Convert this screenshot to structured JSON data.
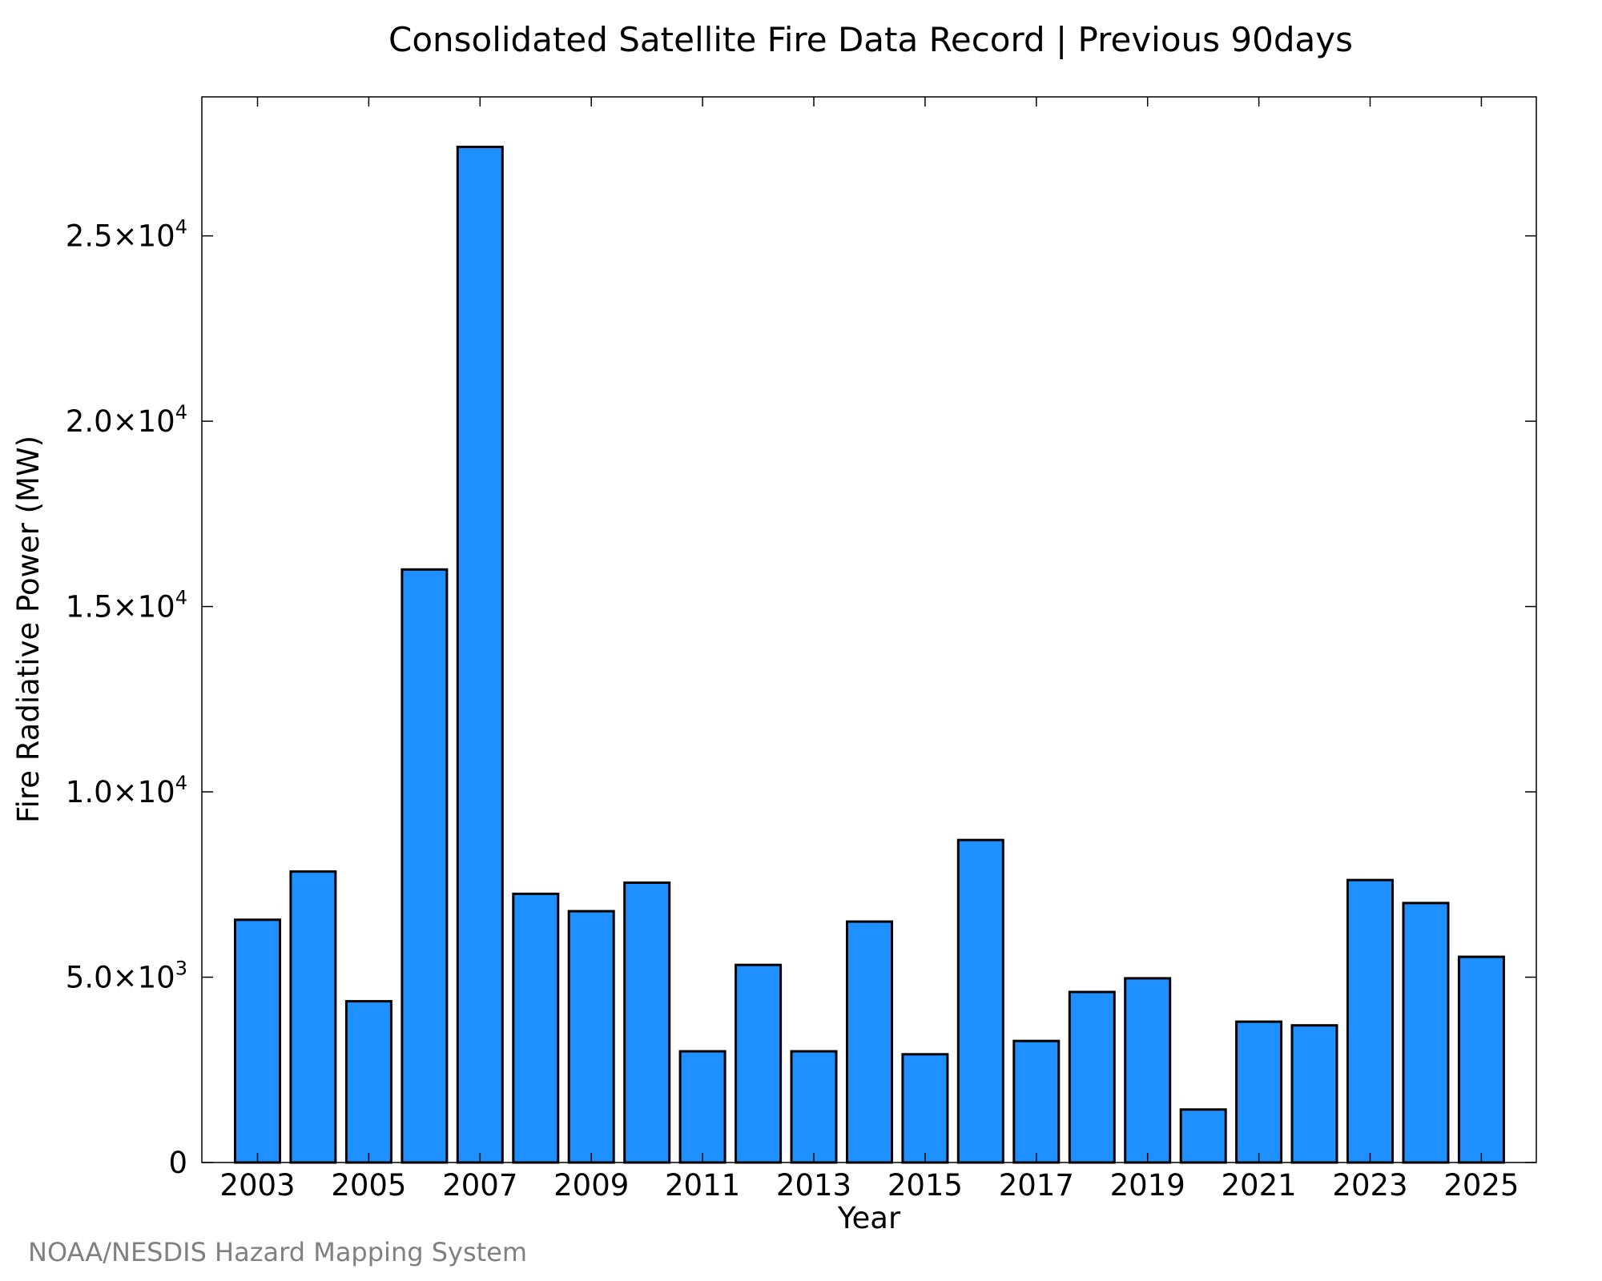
{
  "chart_data": {
    "type": "bar",
    "title": "Consolidated Satellite Fire Data Record | Previous 90days",
    "xlabel": "Year",
    "ylabel": "Fire Radiative Power (MW)",
    "categories": [
      "2003",
      "2004",
      "2005",
      "2006",
      "2007",
      "2008",
      "2009",
      "2010",
      "2011",
      "2012",
      "2013",
      "2014",
      "2015",
      "2016",
      "2017",
      "2018",
      "2019",
      "2020",
      "2021",
      "2022",
      "2023",
      "2024",
      "2025"
    ],
    "values": [
      6550,
      7850,
      4350,
      16000,
      27400,
      7250,
      6780,
      7550,
      3000,
      5330,
      3000,
      6500,
      2920,
      8700,
      3280,
      4600,
      4970,
      1430,
      3800,
      3700,
      7620,
      7000,
      5550
    ],
    "x_tick_labels": [
      "2003",
      "2005",
      "2007",
      "2009",
      "2011",
      "2013",
      "2015",
      "2017",
      "2019",
      "2021",
      "2023",
      "2025"
    ],
    "y_ticks": [
      {
        "value": 0,
        "mantissa": "0",
        "exponent": ""
      },
      {
        "value": 5000,
        "mantissa": "5.0×10",
        "exponent": "3"
      },
      {
        "value": 10000,
        "mantissa": "1.0×10",
        "exponent": "4"
      },
      {
        "value": 15000,
        "mantissa": "1.5×10",
        "exponent": "4"
      },
      {
        "value": 20000,
        "mantissa": "2.0×10",
        "exponent": "4"
      },
      {
        "value": 25000,
        "mantissa": "2.5×10",
        "exponent": "4"
      }
    ],
    "ylim": [
      0,
      28750
    ],
    "grid": false,
    "bar_color": "#1E90FF",
    "credit": "NOAA/NESDIS Hazard Mapping System"
  }
}
